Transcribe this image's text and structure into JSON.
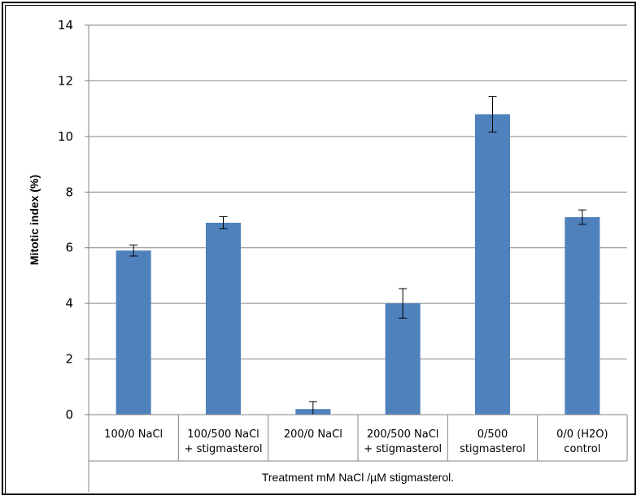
{
  "chart_data": {
    "type": "bar",
    "title": "",
    "xlabel": "Treatment mM NaCl /µM stigmasterol.",
    "ylabel": "Mitotic index (%)",
    "ylim": [
      0,
      14
    ],
    "yticks": [
      0,
      2,
      4,
      6,
      8,
      10,
      12,
      14
    ],
    "grid": true,
    "legend": "none",
    "categories": [
      [
        "100/0 NaCl"
      ],
      [
        "100/500 NaCl",
        "+ stigmasterol"
      ],
      [
        "200/0 NaCl"
      ],
      [
        "200/500 NaCl",
        "+ stigmasterol"
      ],
      [
        "0/500",
        "stigmasterol"
      ],
      [
        "0/0 (H2O)",
        "control"
      ]
    ],
    "series": [
      {
        "values": [
          5.9,
          6.9,
          0.2,
          4.0,
          10.8,
          7.1
        ],
        "error": [
          0.2,
          0.22,
          0.27,
          0.53,
          0.64,
          0.26
        ],
        "color": "#4f81bd"
      }
    ]
  }
}
